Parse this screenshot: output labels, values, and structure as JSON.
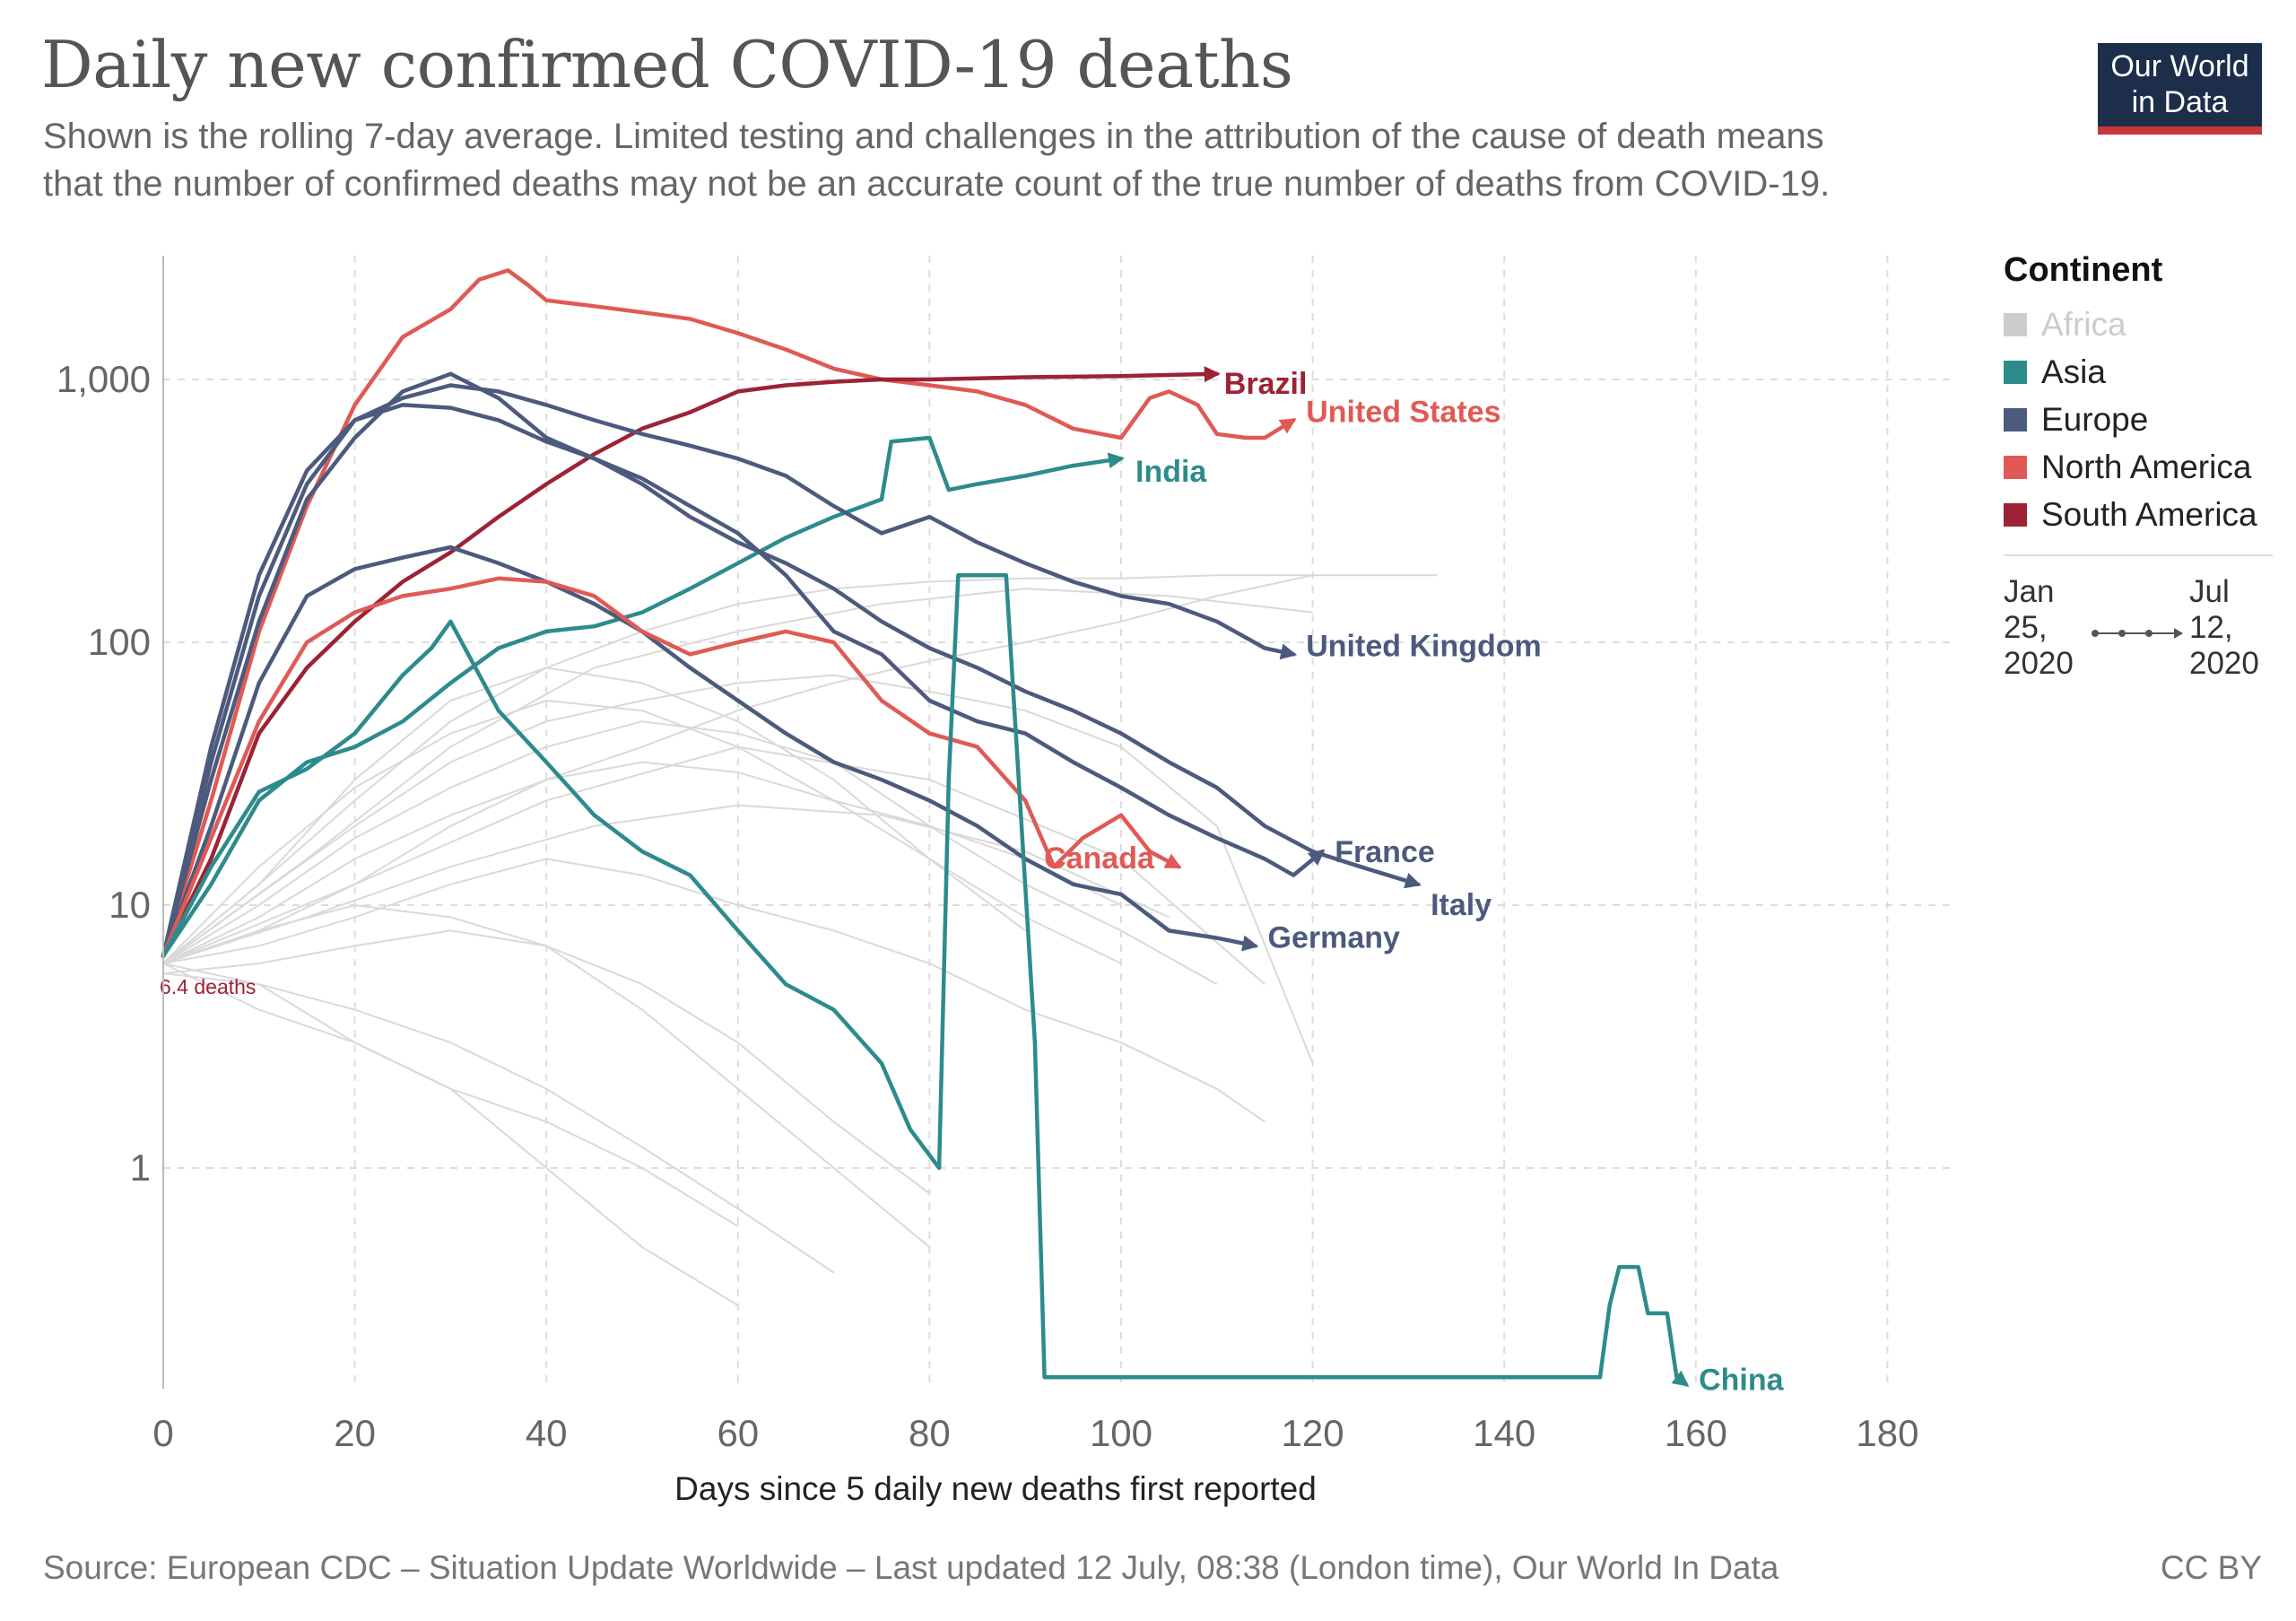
{
  "header": {
    "title": "Daily new confirmed COVID-19 deaths",
    "subtitle_line1": "Shown is the rolling 7-day average. Limited testing and challenges in the attribution of the cause of death means",
    "subtitle_line2": "that the number of confirmed deaths may not be an accurate count of the true number of deaths from COVID-19."
  },
  "logo": {
    "line1": "Our World",
    "line2": "in Data"
  },
  "footer": {
    "source": "Source: European CDC – Situation Update Worldwide – Last updated 12 July, 08:38 (London time), Our World In Data",
    "license": "CC BY"
  },
  "legend": {
    "title": "Continent",
    "items": [
      {
        "label": "Africa",
        "color": "#cccccc"
      },
      {
        "label": "Asia",
        "color": "#2e8b8b"
      },
      {
        "label": "Europe",
        "color": "#4c5a7d"
      },
      {
        "label": "North America",
        "color": "#e05a55"
      },
      {
        "label": "South America",
        "color": "#9b2335"
      }
    ],
    "timeline_start": "Jan 25, 2020",
    "timeline_end": "Jul 12, 2020"
  },
  "chart_data": {
    "type": "line",
    "title": "Daily new confirmed COVID-19 deaths",
    "xlabel": "Days since 5 daily new deaths first reported",
    "ylabel": "",
    "yscale": "log",
    "xlim": [
      0,
      180
    ],
    "ylim": [
      0.15,
      2500
    ],
    "x_ticks": [
      0,
      20,
      40,
      60,
      80,
      100,
      120,
      140,
      160,
      180
    ],
    "x_tick_labels": [
      "0",
      "20",
      "40",
      "60",
      "80",
      "100",
      "120",
      "140",
      "160",
      "180"
    ],
    "y_ticks": [
      1,
      10,
      100,
      1000
    ],
    "y_tick_labels": [
      "1",
      "10",
      "100",
      "1,000"
    ],
    "start_annotation": "6.4 deaths",
    "grid": true,
    "series": [
      {
        "name": "United States",
        "continent": "North America",
        "color": "#e05a55",
        "x": [
          0,
          5,
          10,
          15,
          20,
          25,
          30,
          33,
          36,
          38,
          40,
          45,
          50,
          55,
          60,
          65,
          70,
          75,
          80,
          85,
          90,
          95,
          100,
          103,
          105,
          108,
          110,
          113,
          115,
          118
        ],
        "y": [
          6.4,
          25,
          110,
          330,
          800,
          1450,
          1850,
          2400,
          2600,
          2300,
          2000,
          1900,
          1800,
          1700,
          1500,
          1300,
          1100,
          1000,
          950,
          900,
          800,
          650,
          600,
          850,
          900,
          800,
          620,
          600,
          600,
          700
        ]
      },
      {
        "name": "Brazil",
        "continent": "South America",
        "color": "#9b2335",
        "x": [
          0,
          5,
          10,
          15,
          20,
          25,
          30,
          35,
          40,
          45,
          50,
          55,
          60,
          65,
          70,
          75,
          80,
          90,
          100,
          110
        ],
        "y": [
          6.4,
          15,
          45,
          80,
          120,
          170,
          220,
          300,
          400,
          520,
          650,
          750,
          900,
          950,
          980,
          1000,
          1000,
          1020,
          1030,
          1050
        ]
      },
      {
        "name": "India",
        "continent": "Asia",
        "color": "#2e8b8b",
        "x": [
          0,
          5,
          10,
          15,
          20,
          25,
          30,
          35,
          40,
          45,
          50,
          55,
          60,
          65,
          70,
          75,
          76,
          80,
          82,
          85,
          90,
          95,
          100
        ],
        "y": [
          6.4,
          12,
          25,
          35,
          40,
          50,
          70,
          95,
          110,
          115,
          130,
          160,
          200,
          250,
          300,
          350,
          580,
          600,
          380,
          400,
          430,
          470,
          500
        ]
      },
      {
        "name": "United Kingdom",
        "continent": "Europe",
        "color": "#4c5a7d",
        "x": [
          0,
          5,
          10,
          15,
          20,
          25,
          30,
          35,
          40,
          45,
          50,
          55,
          60,
          65,
          70,
          75,
          80,
          85,
          90,
          95,
          100,
          105,
          110,
          115,
          118
        ],
        "y": [
          6.4,
          40,
          180,
          450,
          700,
          850,
          950,
          900,
          800,
          700,
          620,
          560,
          500,
          430,
          330,
          260,
          300,
          240,
          200,
          170,
          150,
          140,
          120,
          95,
          90
        ]
      },
      {
        "name": "Italy",
        "continent": "Europe",
        "color": "#4c5a7d",
        "x": [
          0,
          5,
          10,
          15,
          20,
          25,
          30,
          35,
          40,
          45,
          50,
          55,
          60,
          65,
          70,
          75,
          80,
          85,
          90,
          95,
          100,
          105,
          110,
          115,
          120,
          125,
          131
        ],
        "y": [
          6.4,
          35,
          150,
          400,
          700,
          800,
          780,
          700,
          580,
          500,
          400,
          300,
          240,
          200,
          160,
          120,
          95,
          80,
          65,
          55,
          45,
          35,
          28,
          20,
          16,
          14,
          12
        ]
      },
      {
        "name": "France",
        "continent": "Europe",
        "color": "#4c5a7d",
        "x": [
          0,
          5,
          10,
          15,
          20,
          25,
          30,
          35,
          40,
          45,
          50,
          55,
          60,
          65,
          70,
          75,
          80,
          85,
          90,
          95,
          100,
          105,
          110,
          115,
          118,
          121
        ],
        "y": [
          6.4,
          30,
          120,
          350,
          600,
          900,
          1050,
          850,
          600,
          500,
          420,
          330,
          260,
          180,
          110,
          90,
          60,
          50,
          45,
          35,
          28,
          22,
          18,
          15,
          13,
          16
        ]
      },
      {
        "name": "Germany",
        "continent": "Europe",
        "color": "#4c5a7d",
        "x": [
          0,
          5,
          10,
          15,
          20,
          25,
          30,
          35,
          40,
          45,
          50,
          55,
          60,
          65,
          70,
          75,
          80,
          85,
          90,
          95,
          100,
          105,
          110,
          114
        ],
        "y": [
          6.4,
          20,
          70,
          150,
          190,
          210,
          230,
          200,
          170,
          140,
          110,
          80,
          60,
          45,
          35,
          30,
          25,
          20,
          15,
          12,
          11,
          8,
          7.5,
          7
        ]
      },
      {
        "name": "Canada",
        "continent": "North America",
        "color": "#e05a55",
        "x": [
          0,
          5,
          10,
          15,
          20,
          25,
          30,
          35,
          40,
          45,
          50,
          55,
          60,
          65,
          70,
          75,
          80,
          85,
          90,
          93,
          96,
          100,
          103,
          106
        ],
        "y": [
          6.4,
          18,
          50,
          100,
          130,
          150,
          160,
          175,
          170,
          150,
          110,
          90,
          100,
          110,
          100,
          60,
          45,
          40,
          25,
          14,
          18,
          22,
          16,
          14
        ]
      },
      {
        "name": "China",
        "continent": "Asia",
        "color": "#2e8b8b",
        "x": [
          0,
          5,
          10,
          15,
          20,
          25,
          28,
          30,
          35,
          40,
          45,
          50,
          55,
          60,
          65,
          70,
          75,
          78,
          81,
          82,
          83,
          88,
          91,
          92,
          150,
          151,
          152,
          154,
          155,
          157,
          158,
          159
        ],
        "y": [
          6.4,
          14,
          27,
          33,
          45,
          75,
          95,
          120,
          55,
          35,
          22,
          16,
          13,
          8,
          5,
          4,
          2.5,
          1.4,
          1.0,
          30,
          180,
          180,
          3,
          0.16,
          0.16,
          0.3,
          0.42,
          0.42,
          0.28,
          0.28,
          0.16,
          0.15
        ]
      }
    ],
    "background_series_note": "Many other countries drawn as thin light-grey lines",
    "background_series": [
      {
        "x": [
          0,
          10,
          20,
          30,
          40,
          50,
          60,
          70,
          80,
          90,
          100,
          110,
          120
        ],
        "y": [
          6,
          8,
          12,
          20,
          30,
          40,
          55,
          70,
          85,
          100,
          120,
          150,
          180
        ]
      },
      {
        "x": [
          0,
          10,
          20,
          30,
          40,
          50,
          60,
          70,
          80,
          90
        ],
        "y": [
          6,
          12,
          30,
          60,
          80,
          70,
          50,
          30,
          15,
          8
        ]
      },
      {
        "x": [
          0,
          10,
          20,
          30,
          40,
          50,
          60,
          70,
          80
        ],
        "y": [
          5.5,
          6,
          7,
          8,
          7,
          5,
          3,
          1.5,
          0.8
        ]
      },
      {
        "x": [
          0,
          10,
          20,
          30,
          40,
          50,
          60,
          70,
          80,
          90,
          100
        ],
        "y": [
          6,
          9,
          15,
          22,
          30,
          35,
          32,
          25,
          20,
          15,
          10
        ]
      },
      {
        "x": [
          0,
          10,
          20,
          30,
          40,
          50,
          60
        ],
        "y": [
          6,
          4,
          3,
          2,
          1.5,
          1,
          0.6
        ]
      },
      {
        "x": [
          0,
          10,
          20,
          30,
          40,
          50,
          60,
          70,
          80,
          90,
          100,
          110
        ],
        "y": [
          6,
          10,
          18,
          28,
          40,
          50,
          45,
          35,
          20,
          12,
          8,
          5
        ]
      },
      {
        "x": [
          0,
          15,
          30,
          45,
          60,
          75,
          90,
          105,
          120
        ],
        "y": [
          6,
          15,
          40,
          80,
          110,
          140,
          160,
          150,
          130
        ]
      },
      {
        "x": [
          0,
          10,
          20,
          30,
          40,
          50,
          60,
          70,
          80,
          90,
          100,
          110,
          115
        ],
        "y": [
          6,
          7,
          9,
          12,
          15,
          13,
          10,
          8,
          6,
          4,
          3,
          2,
          1.5
        ]
      },
      {
        "x": [
          0,
          10,
          20,
          30,
          40,
          50,
          60,
          70
        ],
        "y": [
          5.5,
          5,
          4,
          3,
          2,
          1.2,
          0.7,
          0.4
        ]
      },
      {
        "x": [
          0,
          10,
          20,
          30,
          40,
          50,
          60,
          70,
          80,
          90,
          100,
          110,
          120
        ],
        "y": [
          6,
          11,
          20,
          35,
          50,
          60,
          70,
          75,
          65,
          55,
          40,
          20,
          2.5
        ]
      },
      {
        "x": [
          0,
          20,
          40,
          60,
          80,
          100,
          115
        ],
        "y": [
          6,
          12,
          25,
          40,
          30,
          15,
          5
        ]
      },
      {
        "x": [
          0,
          10,
          20,
          30,
          40,
          50,
          60,
          70,
          80
        ],
        "y": [
          6,
          8,
          10,
          9,
          7,
          4,
          2,
          1,
          0.5
        ]
      },
      {
        "x": [
          0,
          10,
          20,
          30,
          40,
          50,
          60,
          70,
          80,
          90,
          100
        ],
        "y": [
          6,
          14,
          28,
          45,
          60,
          55,
          40,
          25,
          15,
          9,
          6
        ]
      },
      {
        "x": [
          0,
          10,
          20,
          30,
          40,
          50,
          60
        ],
        "y": [
          6,
          5,
          3,
          2,
          1,
          0.5,
          0.3
        ]
      },
      {
        "x": [
          0,
          15,
          30,
          45,
          60,
          75,
          90,
          105
        ],
        "y": [
          6,
          9,
          14,
          20,
          24,
          22,
          16,
          9
        ]
      },
      {
        "x": [
          0,
          10,
          20,
          30,
          40,
          50,
          60,
          70,
          80,
          90,
          100,
          110,
          120,
          133
        ],
        "y": [
          6,
          12,
          25,
          50,
          80,
          110,
          140,
          160,
          170,
          175,
          175,
          180,
          180,
          180
        ]
      }
    ]
  }
}
